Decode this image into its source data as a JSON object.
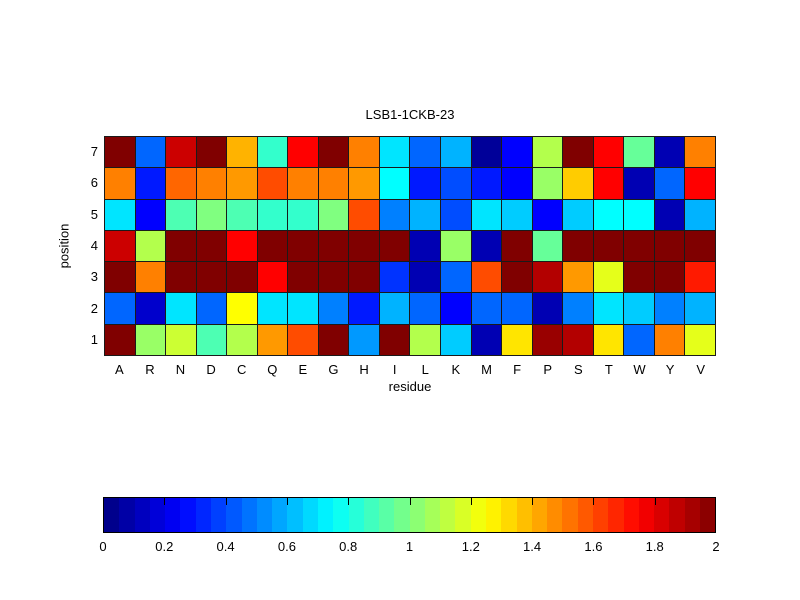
{
  "chart_data": {
    "type": "heatmap",
    "title": "LSB1-1CKB-23",
    "xlabel": "residue",
    "ylabel": "position",
    "colormap": "jet",
    "vmin": 0,
    "vmax": 2,
    "x_categories": [
      "A",
      "R",
      "N",
      "D",
      "C",
      "Q",
      "E",
      "G",
      "H",
      "I",
      "L",
      "K",
      "M",
      "F",
      "P",
      "S",
      "T",
      "W",
      "Y",
      "V"
    ],
    "y_categories": [
      "7",
      "6",
      "5",
      "4",
      "3",
      "2",
      "1"
    ],
    "values": [
      [
        2.0,
        0.45,
        1.85,
        2.0,
        1.4,
        0.85,
        1.75,
        2.0,
        1.5,
        0.7,
        0.45,
        0.6,
        0.05,
        0.25,
        1.1,
        2.0,
        1.75,
        0.95,
        0.1,
        1.5
      ],
      [
        1.5,
        0.3,
        1.55,
        1.5,
        1.45,
        1.6,
        1.5,
        1.5,
        1.45,
        0.75,
        0.3,
        0.4,
        0.3,
        0.25,
        1.05,
        1.35,
        1.75,
        0.1,
        0.45,
        1.75
      ],
      [
        0.7,
        0.25,
        0.9,
        1.0,
        0.9,
        0.85,
        0.85,
        1.0,
        1.6,
        0.5,
        0.6,
        0.4,
        0.7,
        0.65,
        0.25,
        0.65,
        0.75,
        0.75,
        0.1,
        0.6
      ],
      [
        1.85,
        1.1,
        2.0,
        2.0,
        1.75,
        2.0,
        2.0,
        2.0,
        2.0,
        2.0,
        0.1,
        1.05,
        0.1,
        2.0,
        0.95,
        2.0,
        2.0,
        2.0,
        2.0,
        2.0
      ],
      [
        2.0,
        1.5,
        2.0,
        2.0,
        2.0,
        1.75,
        2.0,
        2.0,
        2.0,
        0.35,
        0.1,
        0.45,
        1.6,
        2.0,
        1.9,
        1.45,
        1.2,
        2.0,
        2.0,
        1.7
      ],
      [
        0.45,
        0.15,
        0.7,
        0.45,
        1.25,
        0.7,
        0.7,
        0.5,
        0.3,
        0.6,
        0.45,
        0.25,
        0.45,
        0.45,
        0.1,
        0.5,
        0.7,
        0.65,
        0.5,
        0.6
      ],
      [
        2.0,
        1.05,
        1.15,
        0.9,
        1.1,
        1.45,
        1.6,
        2.0,
        0.55,
        2.0,
        1.1,
        0.65,
        0.1,
        1.3,
        1.95,
        1.9,
        1.3,
        0.45,
        1.5,
        1.2
      ]
    ],
    "colorbar_ticks": [
      "0",
      "0.2",
      "0.4",
      "0.6",
      "0.8",
      "1",
      "1.2",
      "1.4",
      "1.6",
      "1.8",
      "2"
    ],
    "grid_line_color": "#1a1a1a",
    "legend_position": "bottom"
  }
}
